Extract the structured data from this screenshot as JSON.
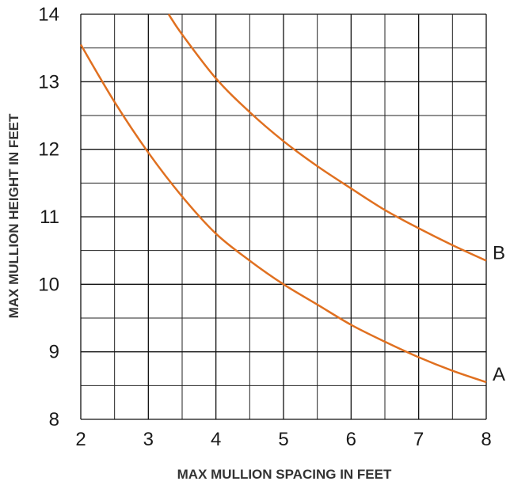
{
  "chart_data": {
    "type": "line",
    "title": "",
    "xlabel": "MAX MULLION SPACING IN FEET",
    "ylabel": "MAX MULLION HEIGHT IN FEET",
    "xlim": [
      2,
      8
    ],
    "ylim": [
      8,
      14
    ],
    "x_ticks": [
      2,
      3,
      4,
      5,
      6,
      7,
      8
    ],
    "y_ticks": [
      8,
      9,
      10,
      11,
      12,
      13,
      14
    ],
    "x_tick_labels": [
      "2",
      "3",
      "4",
      "5",
      "6",
      "7",
      "8"
    ],
    "y_tick_labels": [
      "8",
      "9",
      "10",
      "11",
      "12",
      "13",
      "14"
    ],
    "grid": true,
    "minor_grid": true,
    "line_color": "#e07020",
    "series": [
      {
        "name": "A",
        "x": [
          2.0,
          2.5,
          3.0,
          3.5,
          4.0,
          4.5,
          5.0,
          5.5,
          6.0,
          6.5,
          7.0,
          7.5,
          8.0
        ],
        "y": [
          13.55,
          12.7,
          11.95,
          11.3,
          10.75,
          10.35,
          10.0,
          9.7,
          9.4,
          9.15,
          8.92,
          8.72,
          8.55
        ]
      },
      {
        "name": "B",
        "x": [
          3.3,
          3.5,
          4.0,
          4.5,
          5.0,
          5.5,
          6.0,
          6.5,
          7.0,
          7.5,
          8.0
        ],
        "y": [
          14.0,
          13.7,
          13.05,
          12.55,
          12.12,
          11.75,
          11.42,
          11.1,
          10.83,
          10.58,
          10.35
        ]
      }
    ]
  }
}
